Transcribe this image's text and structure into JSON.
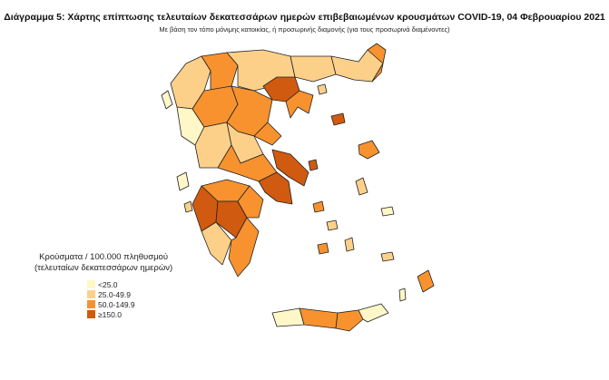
{
  "title": "Διάγραμμα 5: Χάρτης επίπτωσης τελευταίων δεκατεσσάρων ημερών επιβεβαιωμένων κρουσμάτων COVID-19, 04 Φεβρουαρίου 2021",
  "subtitle": "Με βάση τον τόπο μόνιμης κατοικίας, ή προσωρινής διαμονής (για τους προσωρινά διαμένοντες)",
  "legend": {
    "title_line1": "Κρούσματα / 100.000 πληθυσμού",
    "title_line2": "(τελευταίων δεκατεσσάρων ημερών)",
    "items": [
      {
        "label": "<25.0",
        "color": "#fff7c8"
      },
      {
        "label": "25.0-49.9",
        "color": "#fdd08a"
      },
      {
        "label": "50.0-149.9",
        "color": "#f7922e"
      },
      {
        "label": "≥150.0",
        "color": "#d05a10"
      }
    ]
  }
}
